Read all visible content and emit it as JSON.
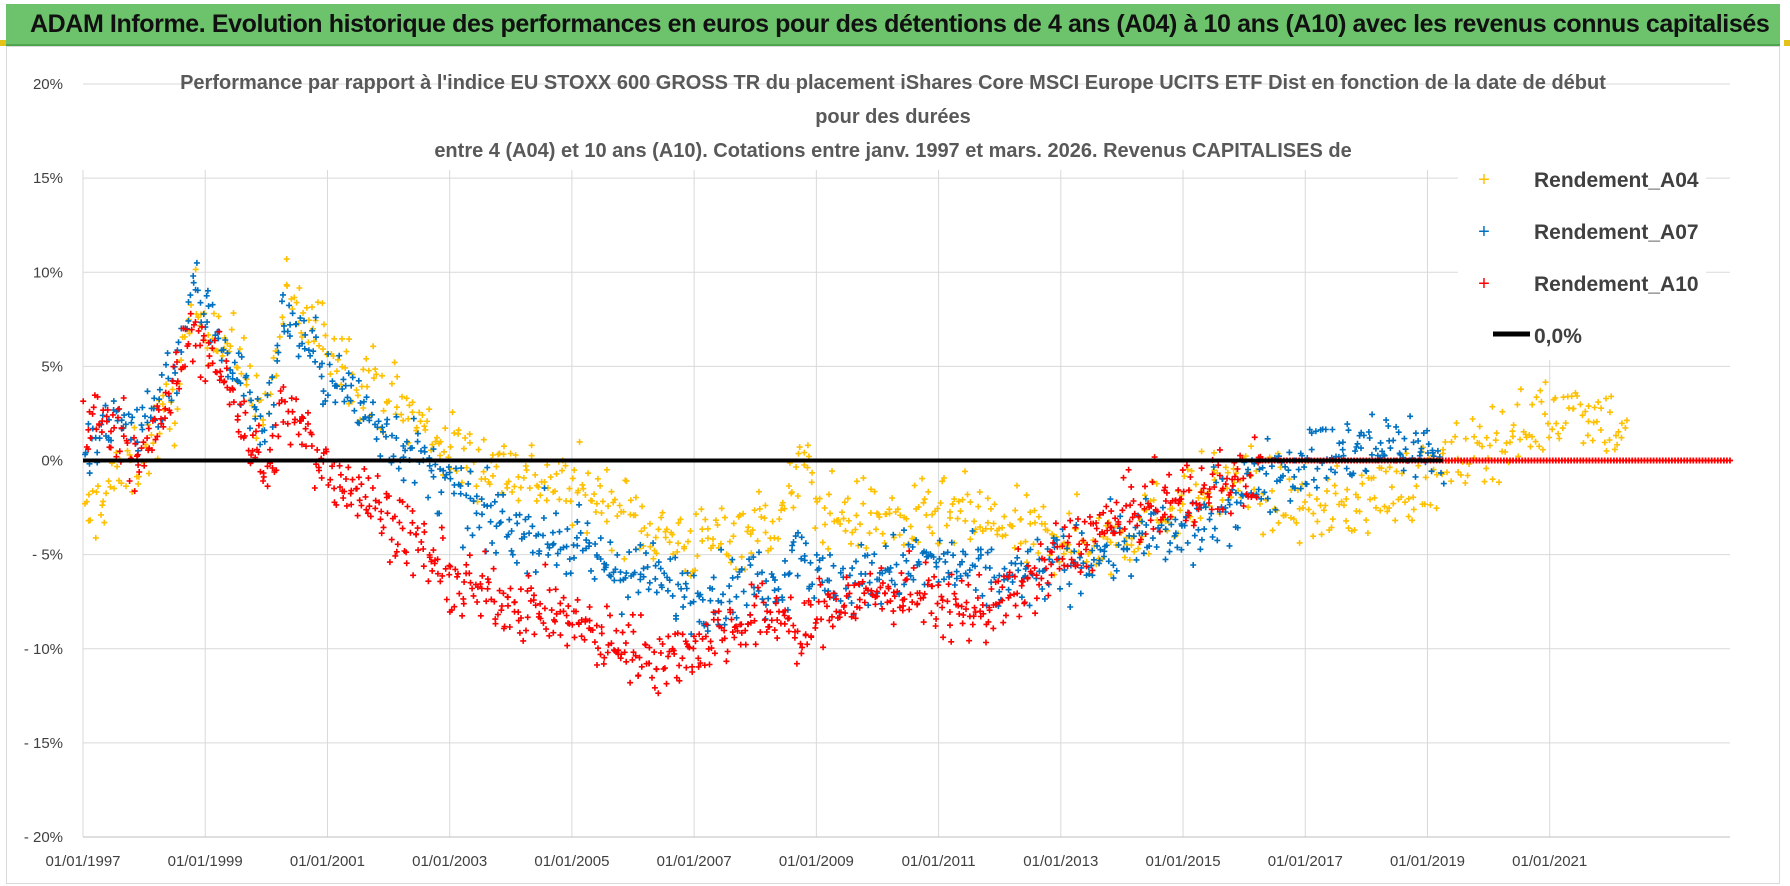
{
  "page": {
    "header": "ADAM Informe. Evolution historique des performances en euros pour des détentions de 4 ans (A04) à 10 ans (A10) avec les revenus connus capitalisés"
  },
  "colors": {
    "header_bg": "#6cc36c",
    "a04": "#ffc000",
    "a07": "#0070c0",
    "a10": "#ff0000",
    "zero": "#000000",
    "grid": "#d9d9d9"
  },
  "chart_data": {
    "type": "scatter",
    "title": [
      "Performance par rapport à l'indice EU STOXX 600 GROSS TR  du placement iShares Core MSCI Europe UCITS ETF Dist en fonction de la date de début",
      "pour des durées",
      "entre 4 (A04) et 10 ans (A10).  Cotations entre janv. 1997 et mars. 2026. Revenus CAPITALISES de"
    ],
    "xlabel": "",
    "ylabel": "",
    "x_range": [
      1997.0,
      2023.95
    ],
    "ylim": [
      -20,
      20
    ],
    "y_ticks": [
      20,
      15,
      10,
      5,
      0,
      -5,
      -10,
      -15,
      -20
    ],
    "y_tick_labels": [
      "20%",
      "15%",
      "10%",
      "5%",
      "0%",
      "- 5%",
      "- 10%",
      "- 15%",
      "- 20%"
    ],
    "x_ticks": [
      1997,
      1999,
      2001,
      2003,
      2005,
      2007,
      2009,
      2011,
      2013,
      2015,
      2017,
      2019,
      2021
    ],
    "x_tick_labels": [
      "01/01/1997",
      "01/01/1999",
      "01/01/2001",
      "01/01/2003",
      "01/01/2005",
      "01/01/2007",
      "01/01/2009",
      "01/01/2011",
      "01/01/2013",
      "01/01/2015",
      "01/01/2017",
      "01/01/2019",
      "01/01/2021"
    ],
    "legend_position": "top-right",
    "series": [
      {
        "name": "Rendement_A04",
        "color": "#ffc000",
        "x_end": 2022.25,
        "x": [
          1997.0,
          1997.5,
          1998.0,
          1998.5,
          1998.8,
          1999.2,
          1999.6,
          2000.0,
          2000.3,
          2000.6,
          2001.0,
          2001.5,
          2002.0,
          2002.3,
          2002.7,
          2003.0,
          2003.5,
          2004.0,
          2004.5,
          2005.0,
          2005.5,
          2006.0,
          2006.5,
          2007.0,
          2007.5,
          2008.0,
          2008.5,
          2008.75,
          2009.0,
          2009.5,
          2010.0,
          2010.5,
          2011.0,
          2011.5,
          2012.0,
          2012.5,
          2013.0,
          2013.5,
          2014.0,
          2014.5,
          2015.0,
          2015.5,
          2016.0,
          2016.5,
          2017.0,
          2017.5,
          2018.0,
          2018.5,
          2019.0,
          2019.5,
          2020.0,
          2020.5,
          2021.0,
          2021.5,
          2022.0,
          2022.25
        ],
        "y": [
          -3.5,
          -1.0,
          0.5,
          3.0,
          8.0,
          7.0,
          5.0,
          2.0,
          8.5,
          7.5,
          6.5,
          4.5,
          3.5,
          2.5,
          1.5,
          0.5,
          0.0,
          -0.5,
          -1.0,
          -1.5,
          -2.0,
          -3.0,
          -4.0,
          -4.5,
          -4.0,
          -3.5,
          -3.0,
          0.5,
          -2.5,
          -3.0,
          -3.0,
          -3.5,
          -3.0,
          -3.0,
          -3.5,
          -4.0,
          -4.0,
          -4.5,
          -4.0,
          -3.0,
          -2.0,
          -1.5,
          -1.0,
          -2.0,
          -2.5,
          -2.5,
          -2.0,
          -1.5,
          -1.0,
          0.0,
          1.0,
          1.5,
          2.5,
          3.0,
          2.0,
          1.5
        ]
      },
      {
        "name": "Rendement_A07",
        "color": "#0070c0",
        "x_end": 2019.25,
        "x": [
          1997.0,
          1997.5,
          1998.0,
          1998.5,
          1998.8,
          1999.2,
          1999.6,
          2000.0,
          2000.3,
          2000.6,
          2001.0,
          2001.5,
          2002.0,
          2002.5,
          2003.0,
          2003.5,
          2004.0,
          2004.5,
          2005.0,
          2005.5,
          2006.0,
          2006.5,
          2007.0,
          2007.5,
          2008.0,
          2008.5,
          2008.75,
          2009.0,
          2009.5,
          2010.0,
          2010.5,
          2011.0,
          2011.5,
          2012.0,
          2012.5,
          2013.0,
          2013.5,
          2014.0,
          2014.5,
          2015.0,
          2015.5,
          2016.0,
          2016.5,
          2017.0,
          2017.5,
          2018.0,
          2018.5,
          2019.0,
          2019.25
        ],
        "y": [
          0.0,
          2.0,
          2.0,
          5.0,
          9.0,
          7.0,
          4.0,
          1.5,
          8.0,
          6.5,
          4.5,
          3.0,
          1.5,
          0.0,
          -1.5,
          -3.0,
          -3.5,
          -4.0,
          -4.5,
          -5.5,
          -6.0,
          -6.5,
          -7.0,
          -7.0,
          -6.5,
          -6.0,
          -4.0,
          -6.5,
          -6.5,
          -6.0,
          -5.5,
          -5.5,
          -6.0,
          -6.5,
          -6.0,
          -5.5,
          -5.0,
          -4.5,
          -4.0,
          -4.0,
          -3.0,
          -1.5,
          -0.5,
          0.0,
          0.3,
          0.5,
          1.0,
          0.5,
          0.0
        ]
      },
      {
        "name": "Rendement_A10",
        "color": "#ff0000",
        "x_end": 2016.25,
        "x": [
          1997.0,
          1997.5,
          1998.0,
          1998.5,
          1998.8,
          1999.2,
          1999.6,
          2000.0,
          2000.3,
          2000.6,
          2001.0,
          2001.5,
          2002.0,
          2002.5,
          2003.0,
          2003.5,
          2004.0,
          2004.5,
          2005.0,
          2005.5,
          2006.0,
          2006.5,
          2007.0,
          2007.5,
          2008.0,
          2008.5,
          2008.75,
          2009.0,
          2009.5,
          2010.0,
          2010.5,
          2011.0,
          2011.5,
          2012.0,
          2012.5,
          2013.0,
          2013.5,
          2014.0,
          2014.5,
          2015.0,
          2015.5,
          2016.0,
          2016.25
        ],
        "y": [
          2.0,
          2.0,
          0.0,
          4.0,
          7.0,
          5.0,
          2.5,
          -1.0,
          3.0,
          1.5,
          -0.5,
          -1.5,
          -3.0,
          -4.5,
          -6.5,
          -7.0,
          -7.5,
          -8.0,
          -8.5,
          -9.5,
          -10.0,
          -10.5,
          -10.0,
          -9.0,
          -8.5,
          -8.0,
          -10.0,
          -8.0,
          -7.5,
          -7.0,
          -7.0,
          -7.5,
          -8.0,
          -7.5,
          -6.5,
          -5.0,
          -4.0,
          -3.0,
          -2.5,
          -2.0,
          -1.5,
          -1.0,
          -0.5
        ]
      },
      {
        "name": "0,0%",
        "color": "#000000",
        "x": [
          1997.0,
          2019.25
        ],
        "y": [
          0,
          0
        ]
      }
    ]
  }
}
